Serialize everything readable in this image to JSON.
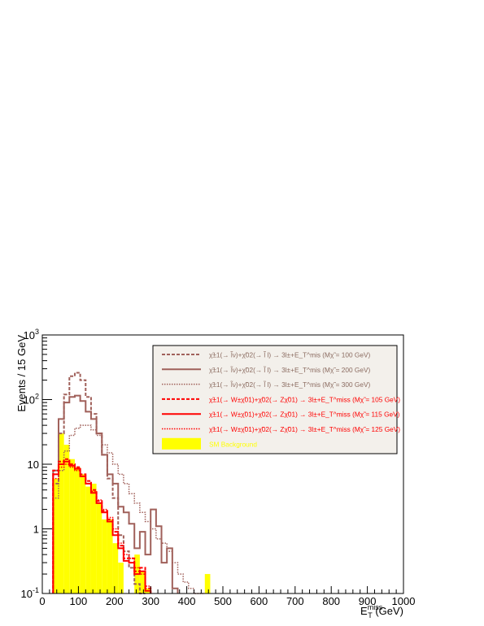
{
  "chart_data": {
    "type": "histogram",
    "ylabel": "Events / 15 GeV",
    "xlabel_main": "E",
    "xlabel_sub": "T",
    "xlabel_sup": "miss",
    "xlabel_unit": " (GeV)",
    "x_range": [
      0,
      1000
    ],
    "y_range": [
      0.1,
      1000
    ],
    "y_scale": "log",
    "bin_width": 15,
    "first_bin_start": 30,
    "x_tick_labels": [
      "0",
      "100",
      "200",
      "300",
      "400",
      "500",
      "600",
      "700",
      "800",
      "900",
      "1000"
    ],
    "y_tick_labels": [
      {
        "base": "10",
        "exp": "-1",
        "value": 0.1
      },
      {
        "base": "1",
        "exp": "",
        "value": 1
      },
      {
        "base": "10",
        "exp": "",
        "value": 10
      },
      {
        "base": "10",
        "exp": "2",
        "value": 100
      },
      {
        "base": "10",
        "exp": "3",
        "value": 1000
      }
    ],
    "series": [
      {
        "legend": "χ̃±1(→ l̃ν)+χ̃02(→ l̃ l) → 3l±+E_T^miss (Mχ̃2 = 100 GeV)",
        "legend_parts": {
          "process": "χ̃±1(→ l̃ν)+χ̃02(→ l̃ l) → 3l±+E_T^mis",
          "mass": "(Mχ̃ = 100 GeV)"
        },
        "color": "#a0605a",
        "dash": "4,2",
        "width": 2,
        "values": [
          5,
          30,
          120,
          230,
          260,
          200,
          110,
          60,
          30,
          14,
          6,
          3,
          0.8,
          0.45,
          0.25,
          0.14,
          0.1
        ]
      },
      {
        "legend": "χ̃±1(→ l̃ν)+χ̃02(→ l̃ l) → 3l±+E_T^miss (Mχ̃2 = 200 GeV)",
        "legend_parts": {
          "process": "χ̃±1(→ l̃ν)+χ̃02(→ l̃ l) → 3l±+E_T^mis",
          "mass": "(Mχ̃ = 200 GeV)"
        },
        "color": "#a0605a",
        "dash": "",
        "width": 2,
        "values": [
          8,
          50,
          90,
          110,
          115,
          95,
          65,
          50,
          30,
          14,
          7,
          5,
          2.2,
          1.8,
          1.2,
          0.5,
          0.9,
          0.4,
          2.0,
          1.1,
          0.3,
          0.5,
          0.12
        ]
      },
      {
        "legend": "χ̃±1(→ l̃ν)+χ̃02(→ l̃ l) → 3l±+E_T^miss (Mχ̃2 = 300 GeV)",
        "legend_parts": {
          "process": "χ̃±1(→ l̃ν)+χ̃02(→ l̃ l) → 3l±+E_T^mis",
          "mass": "(Mχ̃ = 300 GeV)"
        },
        "color": "#a0605a",
        "dash": "1.5,1.5",
        "width": 1.5,
        "values": [
          3,
          8,
          16,
          28,
          36,
          40,
          40,
          34,
          28,
          20,
          15,
          10,
          7,
          5,
          3.5,
          2.5,
          1.8,
          1.3,
          1.0,
          0.7,
          0.6,
          0.45,
          0.3,
          0.2,
          0.15,
          0.12,
          0.1,
          0.1
        ]
      },
      {
        "legend": "χ̃±1(→ W±χ̃01)+χ̃02(→ Zχ̃01) → 3l±+E_T^miss (Mχ̃2 = 105 GeV)",
        "legend_parts": {
          "process": "χ̃±1(→ W±χ̃01)+χ̃02(→ Zχ̃01) → 3l±+E_T^miss",
          "mass": "(Mχ̃ = 105 GeV)"
        },
        "color": "#ff0000",
        "dash": "4,2",
        "width": 2,
        "values": [
          8,
          11,
          12,
          10,
          9,
          7,
          5.5,
          4,
          2.7,
          1.9,
          1.4,
          0.9,
          0.55,
          0.35,
          0.35,
          0.22,
          0.25,
          0.12
        ]
      },
      {
        "legend": "χ̃±1(→ W±χ̃01)+χ̃02(→ Zχ̃01) → 3l±+E_T^miss (Mχ̃2 = 115 GeV)",
        "legend_parts": {
          "process": "χ̃±1(→ W±χ̃01)+χ̃02(→ Zχ̃01) → 3l±+E_T^miss",
          "mass": "(Mχ̃ = 115 GeV)"
        },
        "color": "#ff0000",
        "dash": "",
        "width": 2,
        "values": [
          7,
          10,
          11,
          9.5,
          8.5,
          6.5,
          5,
          3.6,
          2.5,
          1.8,
          1.3,
          0.8,
          0.5,
          0.32,
          0.3,
          0.2,
          0.22,
          0.11
        ]
      },
      {
        "legend": "χ̃±1(→ W±χ̃01)+χ̃02(→ Zχ̃01) → 3l±+E_T^miss (Mχ̃2 = 125 GeV)",
        "legend_parts": {
          "process": "χ̃±1(→ W±χ̃01)+χ̃02(→ Zχ̃01) → 3l±+E_T^miss",
          "mass": "(Mχ̃ = 125 GeV)"
        },
        "color": "#ff0000",
        "dash": "1.5,1.5",
        "width": 1.5,
        "values": [
          6,
          9,
          10,
          9,
          8,
          6.5,
          5,
          3.8,
          2.8,
          2.0,
          1.5,
          1.0,
          0.6,
          0.4,
          0.35,
          0.25,
          0.2,
          0.13
        ]
      }
    ],
    "background": {
      "legend": "SM Background",
      "color": "#ffff00",
      "bins": [
        [
          30,
          45,
          6
        ],
        [
          45,
          60,
          30
        ],
        [
          60,
          75,
          20
        ],
        [
          75,
          90,
          12
        ],
        [
          90,
          105,
          9
        ],
        [
          105,
          120,
          7
        ],
        [
          120,
          135,
          4.5
        ],
        [
          135,
          150,
          5
        ],
        [
          150,
          165,
          2.5
        ],
        [
          165,
          180,
          1.4
        ],
        [
          180,
          195,
          1.4
        ],
        [
          195,
          210,
          0.6
        ],
        [
          210,
          225,
          0.3
        ],
        [
          255,
          270,
          0.4
        ],
        [
          270,
          285,
          0.22
        ],
        [
          285,
          300,
          0.12
        ],
        [
          450,
          465,
          0.2
        ]
      ]
    }
  }
}
